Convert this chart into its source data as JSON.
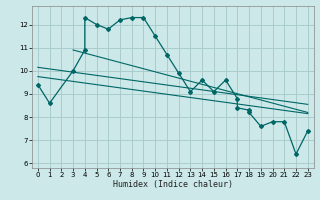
{
  "title": "",
  "xlabel": "Humidex (Indice chaleur)",
  "ylabel": "",
  "bg_color": "#cce8e8",
  "grid_color": "#aacccc",
  "line_color": "#006666",
  "xlim": [
    -0.5,
    23.5
  ],
  "ylim": [
    5.8,
    12.8
  ],
  "xticks": [
    0,
    1,
    2,
    3,
    4,
    5,
    6,
    7,
    8,
    9,
    10,
    11,
    12,
    13,
    14,
    15,
    16,
    17,
    18,
    19,
    20,
    21,
    22,
    23
  ],
  "yticks": [
    6,
    7,
    8,
    9,
    10,
    11,
    12
  ],
  "main_data_x": [
    0,
    1,
    3,
    4,
    4,
    5,
    6,
    7,
    8,
    9,
    10,
    11,
    12,
    13,
    14,
    15,
    16,
    17,
    17,
    18,
    18,
    19,
    20,
    21,
    22,
    23
  ],
  "main_data_y": [
    9.4,
    8.6,
    10.0,
    10.9,
    12.3,
    12.0,
    11.8,
    12.2,
    12.3,
    12.3,
    11.5,
    10.7,
    9.9,
    9.1,
    9.6,
    9.1,
    9.6,
    8.8,
    8.4,
    8.3,
    8.2,
    7.6,
    7.8,
    7.8,
    6.4,
    7.4
  ],
  "trend1_x": [
    0,
    23
  ],
  "trend1_y": [
    10.15,
    8.55
  ],
  "trend2_x": [
    0,
    23
  ],
  "trend2_y": [
    9.75,
    8.15
  ],
  "trend3_x": [
    3,
    23
  ],
  "trend3_y": [
    10.9,
    8.2
  ]
}
